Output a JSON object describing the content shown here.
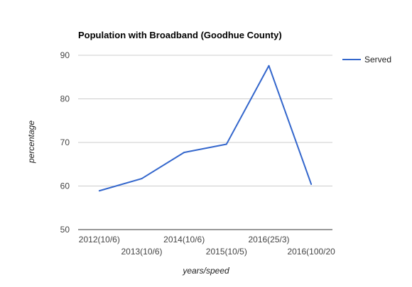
{
  "chart_data": {
    "type": "line",
    "title": "Population with Broadband (Goodhue County)",
    "xlabel": "years/speed",
    "ylabel": "percentage",
    "categories": [
      "2012(10/6)",
      "2013(10/6)",
      "2014(10/6)",
      "2015(10/5)",
      "2016(25/3)",
      "2016(100/20"
    ],
    "series": [
      {
        "name": "Served",
        "values": [
          58.9,
          61.7,
          67.7,
          69.6,
          87.6,
          60.4
        ],
        "color": "#3366cc"
      }
    ],
    "ylim": [
      50,
      90
    ],
    "yticks": [
      50,
      60,
      70,
      80,
      90
    ],
    "grid": true,
    "legend_position": "right"
  }
}
